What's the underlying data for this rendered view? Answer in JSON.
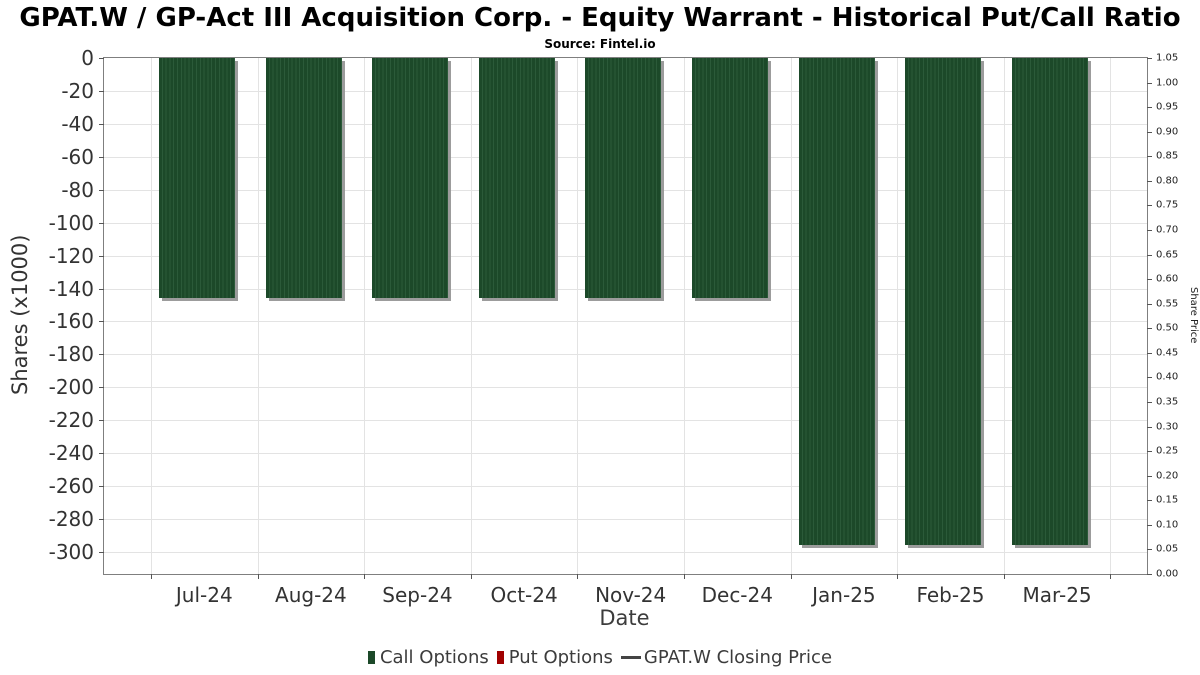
{
  "title": "GPAT.W / GP-Act III Acquisition Corp. - Equity Warrant - Historical Put/Call Ratio",
  "source": "Source: Fintel.io",
  "chart_data": {
    "type": "bar",
    "categories": [
      "Jul-24",
      "Aug-24",
      "Sep-24",
      "Oct-24",
      "Nov-24",
      "Dec-24",
      "Jan-25",
      "Feb-25",
      "Mar-25"
    ],
    "series": [
      {
        "name": "Call Options",
        "marker": "square",
        "color": "#1c4929",
        "values": [
          -146,
          -146,
          -146,
          -146,
          -146,
          -146,
          -296,
          -296,
          -296
        ]
      },
      {
        "name": "Put Options",
        "marker": "square",
        "color": "#a00000",
        "values": [
          0,
          0,
          0,
          0,
          0,
          0,
          0,
          0,
          0
        ]
      },
      {
        "name": "GPAT.W Closing Price",
        "marker": "line",
        "color": "#444444",
        "values": []
      }
    ],
    "xlabel": "Date",
    "ylabel_left": "Shares (x1000)",
    "ylabel_right": "Share Price",
    "ylim_left": [
      -300,
      0
    ],
    "ylim_right": [
      0.0,
      1.05
    ],
    "left_ticks": [
      "0",
      "-20",
      "-40",
      "-60",
      "-80",
      "-100",
      "-120",
      "-140",
      "-160",
      "-180",
      "-200",
      "-220",
      "-240",
      "-260",
      "-280",
      "-300"
    ],
    "right_ticks": [
      "1.05",
      "1.00",
      "0.95",
      "0.90",
      "0.85",
      "0.80",
      "0.75",
      "0.70",
      "0.65",
      "0.60",
      "0.55",
      "0.50",
      "0.45",
      "0.40",
      "0.35",
      "0.30",
      "0.25",
      "0.20",
      "0.15",
      "0.10",
      "0.05",
      "0.00"
    ],
    "grid": true,
    "legend_position": "bottom"
  },
  "colors": {
    "bar_green": "#1c4929",
    "bar_stripe": "#2b5a39",
    "bar_shadow": "#919191",
    "put_red": "#a00000",
    "gridline": "#e3e3e3",
    "frame": "#7f7f7f",
    "text": "#333333"
  }
}
